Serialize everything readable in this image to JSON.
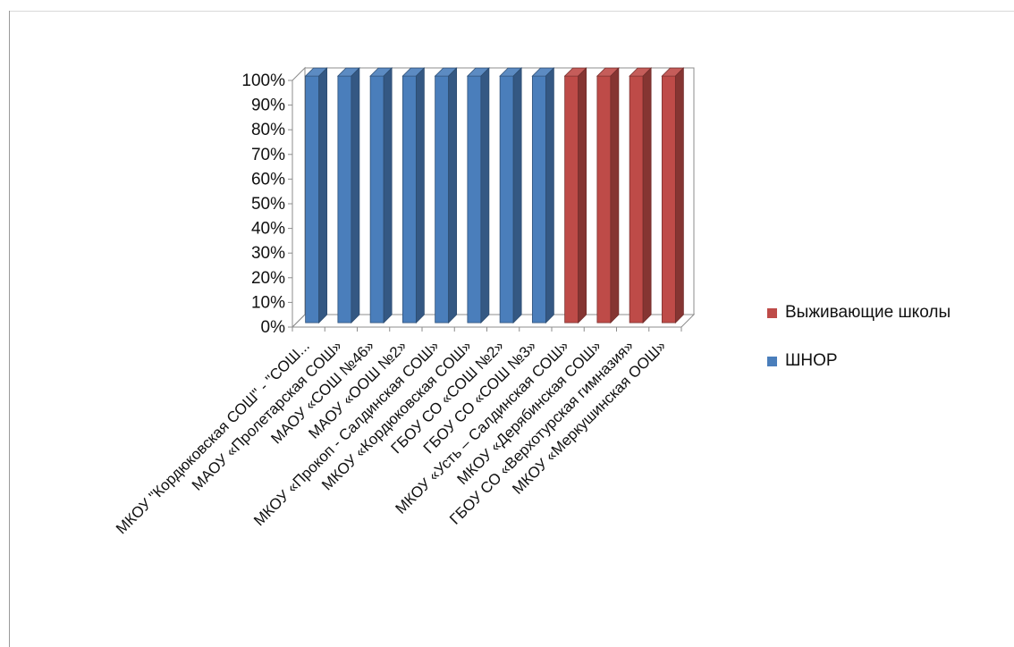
{
  "chart_data": {
    "type": "bar",
    "stacked_percent": true,
    "categories": [
      "МКОУ \"Кордюковская СОШ\" - \"СОШ...",
      "МАОУ «Пролетарская СОШ»",
      "МАОУ «СОШ №46»",
      "МАОУ «ООШ №2»",
      "МКОУ «Прокоп - Салдинская СОШ»",
      "МКОУ «Кордюковская СОШ»",
      "ГБОУ СО «СОШ №2»",
      "ГБОУ СО «СОШ №3»",
      "МКОУ «Усть – Салдинская СОШ»",
      "МКОУ «Дерябинская СОШ»",
      "ГБОУ СО «Верхотурская гимназия»",
      "МКОУ «Меркушинская ООШ»"
    ],
    "series": [
      {
        "name": "ШНОР",
        "color": "#4a7ebb",
        "values": [
          1,
          1,
          1,
          1,
          1,
          1,
          1,
          1,
          0,
          0,
          0,
          0
        ]
      },
      {
        "name": "Выживающие школы",
        "color": "#be4b48",
        "values": [
          0,
          0,
          0,
          0,
          0,
          0,
          0,
          0,
          1,
          1,
          1,
          1
        ]
      }
    ],
    "yticks": [
      "0%",
      "10%",
      "20%",
      "30%",
      "40%",
      "50%",
      "60%",
      "70%",
      "80%",
      "90%",
      "100%"
    ],
    "ylim": [
      0,
      100
    ],
    "legend_position": "right",
    "legend": [
      "Выживающие школы",
      "ШНОР"
    ],
    "grid": false,
    "view": "3d"
  }
}
